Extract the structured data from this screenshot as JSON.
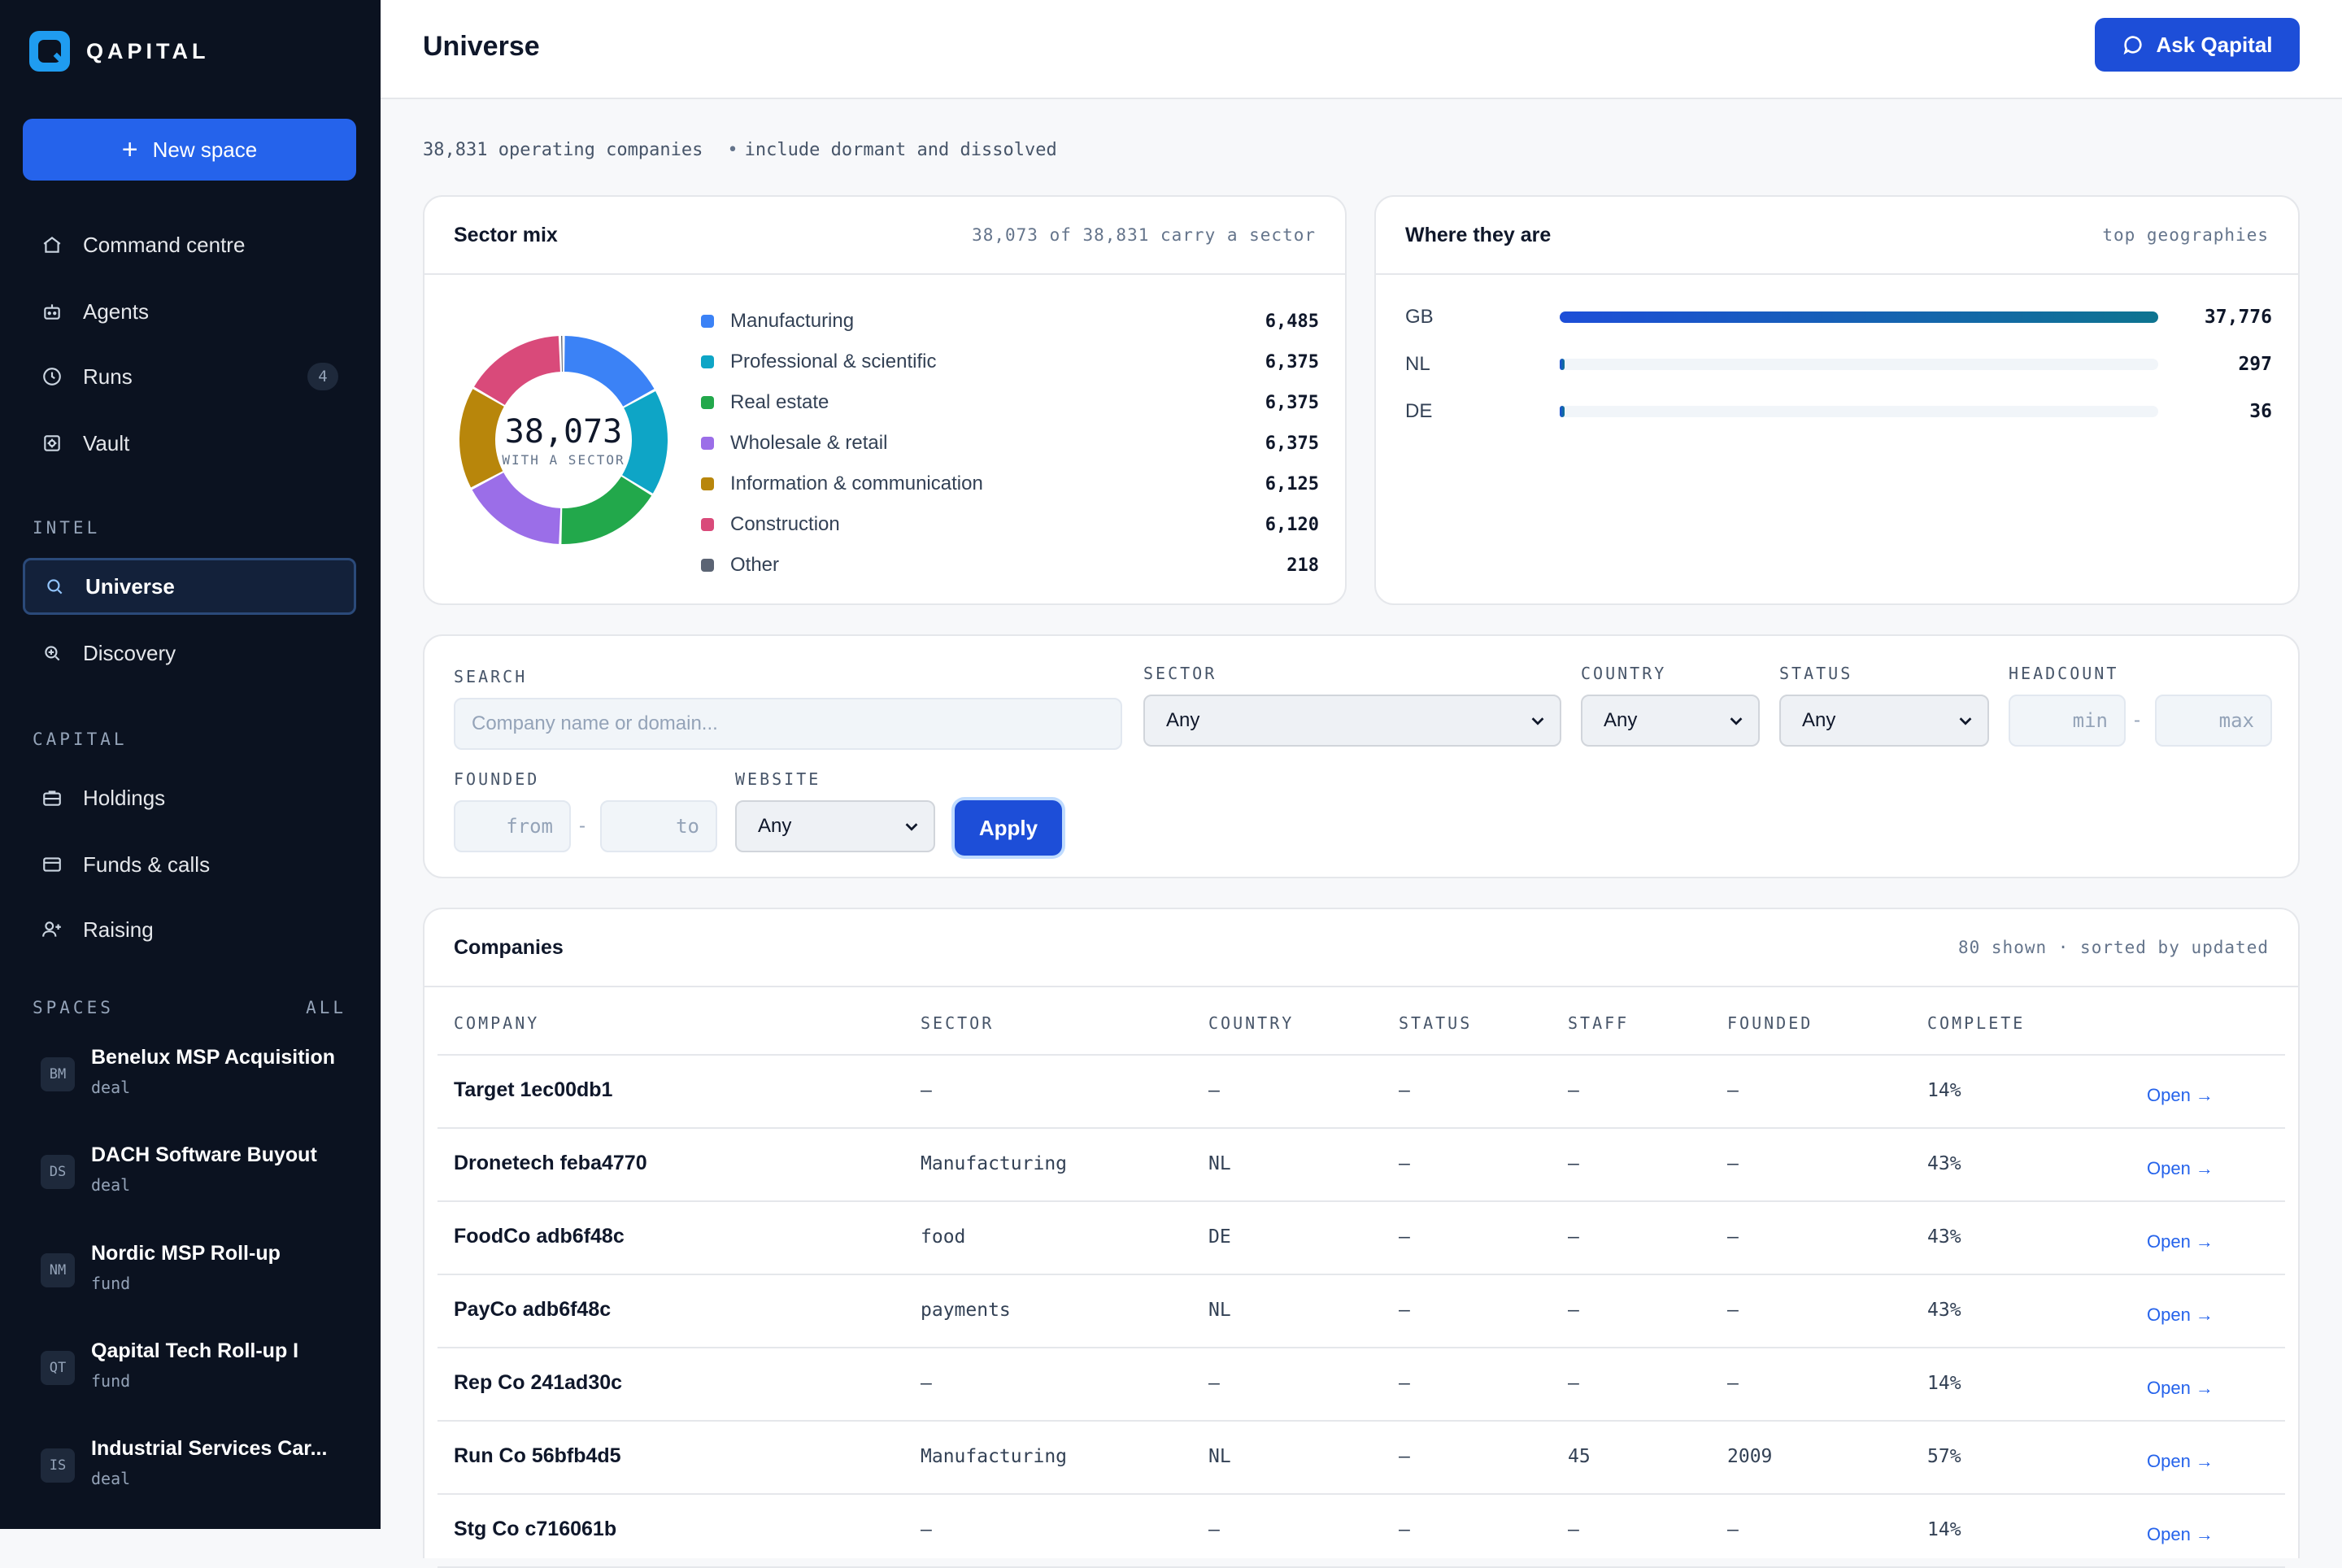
{
  "brand": {
    "name": "QAPITAL"
  },
  "sidebar": {
    "new_space_label": "New space",
    "nav": [
      {
        "label": "Command centre",
        "icon": "home-icon"
      },
      {
        "label": "Agents",
        "icon": "robot-icon"
      },
      {
        "label": "Runs",
        "icon": "clock-icon",
        "count": "4"
      },
      {
        "label": "Vault",
        "icon": "vault-icon"
      }
    ],
    "intel_label": "INTEL",
    "intel": [
      {
        "label": "Universe",
        "icon": "search-icon",
        "active": true
      },
      {
        "label": "Discovery",
        "icon": "discovery-icon"
      }
    ],
    "capital_label": "CAPITAL",
    "capital": [
      {
        "label": "Holdings",
        "icon": "briefcase-icon"
      },
      {
        "label": "Funds & calls",
        "icon": "wallet-icon"
      },
      {
        "label": "Raising",
        "icon": "user-plus-icon"
      }
    ],
    "spaces_label": "SPACES",
    "spaces_all": "ALL",
    "spaces": [
      {
        "badge": "BM",
        "name": "Benelux MSP Acquisition",
        "type": "deal"
      },
      {
        "badge": "DS",
        "name": "DACH Software Buyout",
        "type": "deal"
      },
      {
        "badge": "NM",
        "name": "Nordic MSP Roll-up",
        "type": "fund"
      },
      {
        "badge": "QT",
        "name": "Qapital Tech Roll-up I",
        "type": "fund"
      },
      {
        "badge": "IS",
        "name": "Industrial Services Car...",
        "type": "deal"
      }
    ]
  },
  "header": {
    "title": "Universe",
    "ask_label": "Ask Qapital"
  },
  "summary": {
    "count": "38,831 operating companies",
    "toggle": "include dormant and dissolved"
  },
  "sector_card": {
    "title": "Sector mix",
    "meta": "38,073 of 38,831 carry a sector",
    "center_value": "38,073",
    "center_label": "WITH A SECTOR"
  },
  "chart_data": {
    "type": "pie",
    "title": "Sector mix",
    "categories": [
      "Manufacturing",
      "Professional & scientific",
      "Real estate",
      "Wholesale & retail",
      "Information & communication",
      "Construction",
      "Other"
    ],
    "values": [
      6485,
      6375,
      6375,
      6375,
      6125,
      6120,
      218
    ],
    "value_labels": [
      "6,485",
      "6,375",
      "6,375",
      "6,375",
      "6,125",
      "6,120",
      "218"
    ],
    "colors": [
      "#3b82f6",
      "#0ea5c6",
      "#22a84b",
      "#9b6ee8",
      "#b8860b",
      "#d94a7a",
      "#5b6474"
    ],
    "legend": "right"
  },
  "geo_card": {
    "title": "Where they are",
    "meta": "top geographies",
    "rows": [
      {
        "name": "GB",
        "value": 37776,
        "label": "37,776"
      },
      {
        "name": "NL",
        "value": 297,
        "label": "297"
      },
      {
        "name": "DE",
        "value": 36,
        "label": "36"
      }
    ]
  },
  "filters": {
    "search_label": "SEARCH",
    "search_placeholder": "Company name or domain...",
    "sector_label": "SECTOR",
    "sector_value": "Any",
    "country_label": "COUNTRY",
    "country_value": "Any",
    "status_label": "STATUS",
    "status_value": "Any",
    "headcount_label": "HEADCOUNT",
    "headcount_min": "min",
    "headcount_max": "max",
    "founded_label": "FOUNDED",
    "founded_from": "from",
    "founded_to": "to",
    "website_label": "WEBSITE",
    "website_value": "Any",
    "dash": "-",
    "apply_label": "Apply"
  },
  "companies": {
    "title": "Companies",
    "meta": "80 shown · sorted by updated",
    "columns": [
      "COMPANY",
      "SECTOR",
      "COUNTRY",
      "STATUS",
      "STAFF",
      "FOUNDED",
      "COMPLETE"
    ],
    "open_label": "Open →",
    "rows": [
      {
        "name": "Target 1ec00db1",
        "sector": "–",
        "country": "–",
        "status": "–",
        "staff": "–",
        "founded": "–",
        "complete": "14%"
      },
      {
        "name": "Dronetech feba4770",
        "sector": "Manufacturing",
        "country": "NL",
        "status": "–",
        "staff": "–",
        "founded": "–",
        "complete": "43%"
      },
      {
        "name": "FoodCo adb6f48c",
        "sector": "food",
        "country": "DE",
        "status": "–",
        "staff": "–",
        "founded": "–",
        "complete": "43%"
      },
      {
        "name": "PayCo adb6f48c",
        "sector": "payments",
        "country": "NL",
        "status": "–",
        "staff": "–",
        "founded": "–",
        "complete": "43%"
      },
      {
        "name": "Rep Co 241ad30c",
        "sector": "–",
        "country": "–",
        "status": "–",
        "staff": "–",
        "founded": "–",
        "complete": "14%"
      },
      {
        "name": "Run Co 56bfb4d5",
        "sector": "Manufacturing",
        "country": "NL",
        "status": "–",
        "staff": "45",
        "founded": "2009",
        "complete": "57%"
      },
      {
        "name": "Stg Co c716061b",
        "sector": "–",
        "country": "–",
        "status": "–",
        "staff": "–",
        "founded": "–",
        "complete": "14%"
      }
    ]
  }
}
